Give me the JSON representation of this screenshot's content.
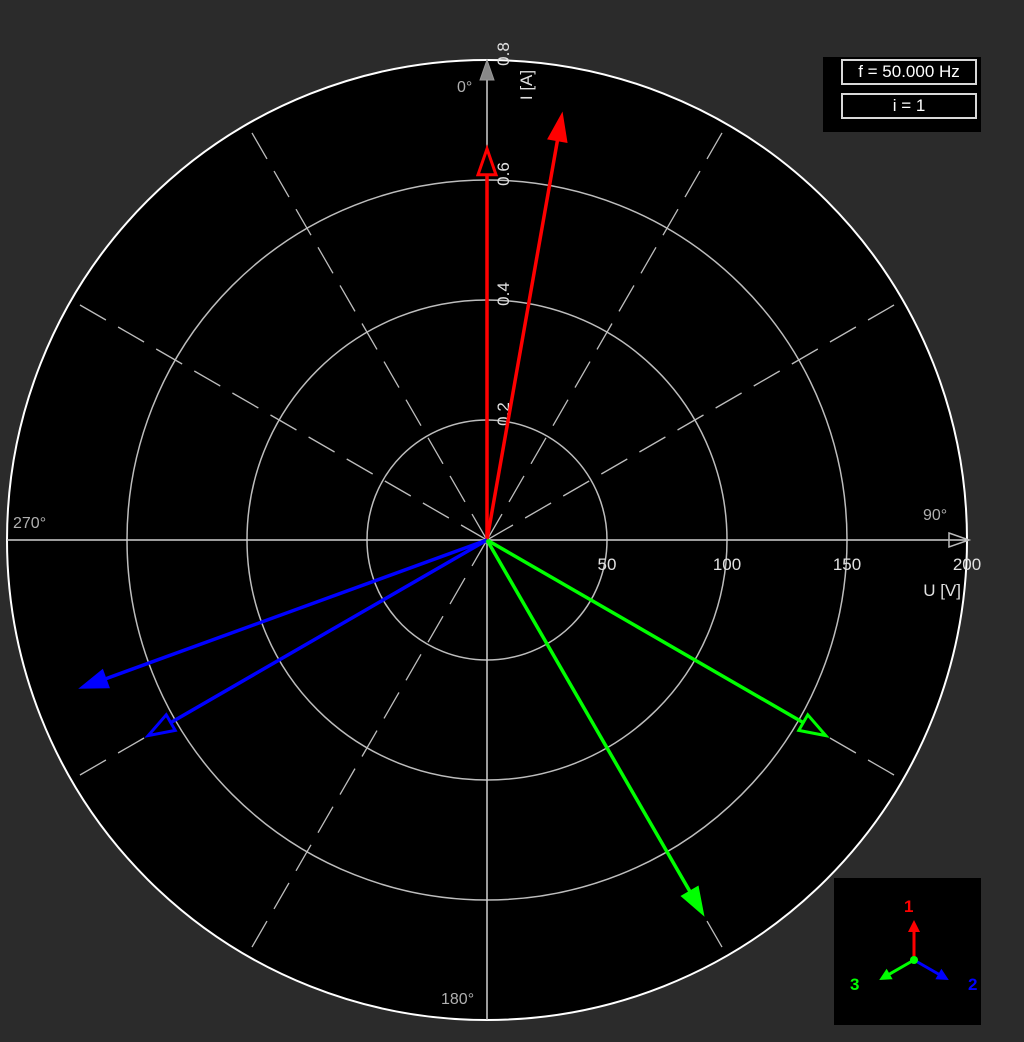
{
  "info": {
    "frequency_label": "f = 50.000 Hz",
    "index_label": "i = 1"
  },
  "chart_data": {
    "type": "phasor",
    "angle_labels": {
      "top": "0°",
      "right": "90°",
      "bottom": "180°",
      "left": "270°"
    },
    "voltage_axis": {
      "label": "U [V]",
      "range": [
        0,
        200
      ],
      "ticks": [
        50,
        100,
        150,
        200
      ]
    },
    "current_axis": {
      "label": "I [A]",
      "range": [
        0,
        0.8
      ],
      "ticks": [
        "0.2",
        "0.4",
        "0.6",
        "0.8"
      ]
    },
    "grid": true,
    "phasors": [
      {
        "phase": "1",
        "quantity": "U",
        "magnitude": 163,
        "angle_deg": 0,
        "color": "#ff0000",
        "head": "hollow"
      },
      {
        "phase": "1",
        "quantity": "I",
        "magnitude": 0.72,
        "angle_deg": 10,
        "color": "#ff0000",
        "head": "filled"
      },
      {
        "phase": "2",
        "quantity": "U",
        "magnitude": 163,
        "angle_deg": 240,
        "color": "#0000ff",
        "head": "hollow"
      },
      {
        "phase": "2",
        "quantity": "I",
        "magnitude": 0.72,
        "angle_deg": 250,
        "color": "#0000ff",
        "head": "filled"
      },
      {
        "phase": "3",
        "quantity": "U",
        "magnitude": 163,
        "angle_deg": 120,
        "color": "#00ff00",
        "head": "hollow"
      },
      {
        "phase": "3",
        "quantity": "I",
        "magnitude": 0.72,
        "angle_deg": 150,
        "color": "#00ff00",
        "head": "filled"
      }
    ]
  },
  "phase_legend": {
    "items": [
      {
        "label": "1",
        "color": "#ff0000"
      },
      {
        "label": "2",
        "color": "#0000ff"
      },
      {
        "label": "3",
        "color": "#00ff00"
      }
    ]
  }
}
